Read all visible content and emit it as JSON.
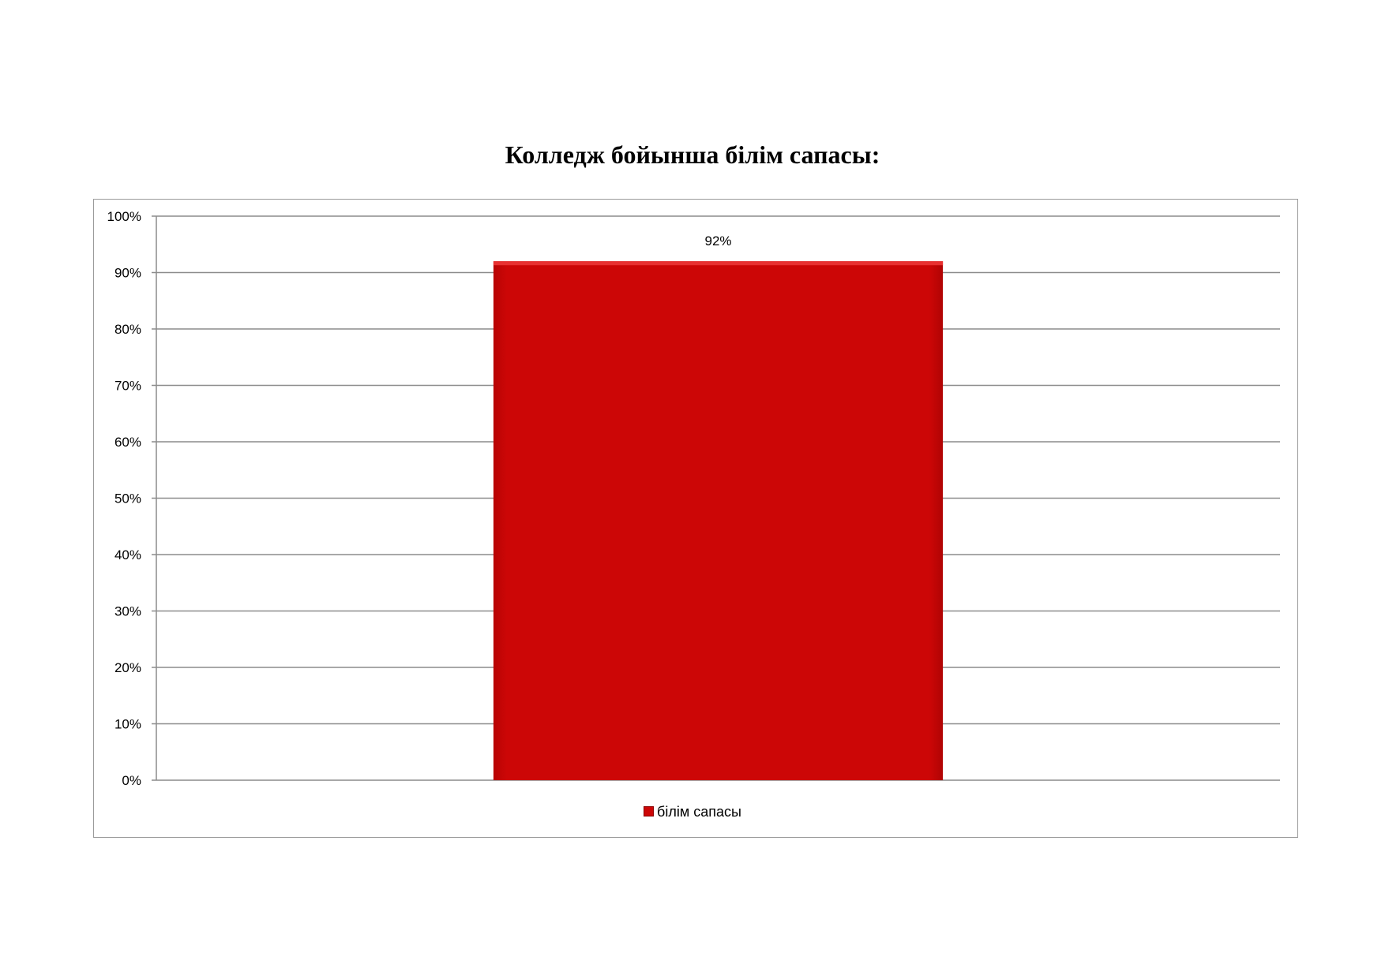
{
  "chart_data": {
    "type": "bar",
    "title": "Колледж бойынша білім сапасы:",
    "categories": [
      ""
    ],
    "series": [
      {
        "name": "білім сапасы",
        "values": [
          92
        ],
        "color": "#cc0606"
      }
    ],
    "data_labels": [
      "92%"
    ],
    "xlabel": "",
    "ylabel": "",
    "ylim": [
      0,
      100
    ],
    "yticks": [
      "0%",
      "10%",
      "20%",
      "30%",
      "40%",
      "50%",
      "60%",
      "70%",
      "80%",
      "90%",
      "100%"
    ],
    "grid": true,
    "legend": "bottom"
  }
}
